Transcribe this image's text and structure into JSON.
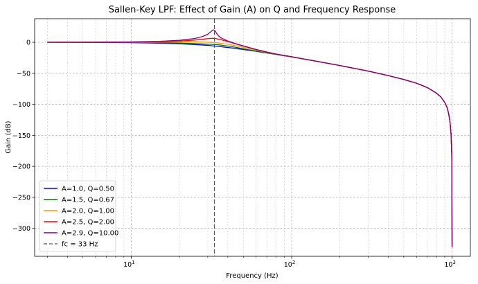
{
  "chart_data": {
    "type": "line",
    "title": "Sallen-Key LPF: Effect of Gain (A) on Q and Frequency Response",
    "xlabel": "Frequency (Hz)",
    "ylabel": "Gain (dB)",
    "xscale": "log",
    "xlim": [
      2.5,
      1300
    ],
    "ylim": [
      -345,
      38
    ],
    "x_ticks": [
      {
        "value": 10,
        "base": "10",
        "exp": "1"
      },
      {
        "value": 100,
        "base": "10",
        "exp": "2"
      },
      {
        "value": 1000,
        "base": "10",
        "exp": "3"
      }
    ],
    "y_ticks": [
      {
        "value": 0,
        "label": "0"
      },
      {
        "value": -50,
        "label": "−50"
      },
      {
        "value": -100,
        "label": "−100"
      },
      {
        "value": -150,
        "label": "−150"
      },
      {
        "value": -200,
        "label": "−200"
      },
      {
        "value": -250,
        "label": "−250"
      },
      {
        "value": -300,
        "label": "−300"
      }
    ],
    "grid": true,
    "legend_position": "lower-left",
    "fc_line": {
      "value": 33,
      "label": "fc = 33 Hz",
      "color": "#555555"
    },
    "series": [
      {
        "name": "A=1.0, Q=0.50",
        "color": "#0000ff",
        "x": [
          3,
          6,
          10,
          15,
          20,
          25,
          28,
          30,
          32,
          33,
          34,
          36,
          40,
          45,
          50,
          60,
          70,
          80,
          100,
          150,
          200,
          300,
          400,
          500,
          600,
          700,
          800,
          850,
          900,
          930,
          950,
          970,
          985,
          995,
          1000
        ],
        "y": [
          0,
          -0.3,
          -0.7,
          -1.4,
          -2.4,
          -3.7,
          -4.5,
          -5,
          -5.7,
          -6,
          -6.4,
          -7.1,
          -8.4,
          -10,
          -11.6,
          -14.6,
          -17.3,
          -19.7,
          -23.7,
          -31.6,
          -37.5,
          -46.5,
          -53.7,
          -60,
          -66,
          -73,
          -82,
          -88,
          -97,
          -105,
          -114,
          -128,
          -148,
          -180,
          -330
        ]
      },
      {
        "name": "A=1.5, Q=0.67",
        "color": "#007700",
        "x": [
          3,
          6,
          10,
          15,
          20,
          25,
          28,
          30,
          32,
          33,
          34,
          36,
          40,
          45,
          50,
          60,
          70,
          80,
          100,
          150,
          200,
          300,
          400,
          500,
          600,
          700,
          800,
          850,
          900,
          930,
          950,
          970,
          985,
          995,
          1000
        ],
        "y": [
          0,
          -0.1,
          -0.3,
          -0.6,
          -1.2,
          -2.1,
          -2.7,
          -3.1,
          -3.4,
          -3.5,
          -3.7,
          -4.5,
          -6.1,
          -8.2,
          -10.4,
          -14.2,
          -17.2,
          -19.7,
          -23.7,
          -31.6,
          -37.5,
          -46.5,
          -53.7,
          -60,
          -66,
          -73,
          -82,
          -88,
          -97,
          -105,
          -114,
          -128,
          -148,
          -180,
          -330
        ]
      },
      {
        "name": "A=2.0, Q=1.00",
        "color": "#ff9900",
        "x": [
          3,
          6,
          10,
          15,
          20,
          25,
          28,
          30,
          32,
          33,
          34,
          36,
          40,
          45,
          50,
          60,
          70,
          80,
          100,
          150,
          200,
          300,
          400,
          500,
          600,
          700,
          800,
          850,
          900,
          930,
          950,
          970,
          985,
          995,
          1000
        ],
        "y": [
          0,
          0.1,
          0.2,
          0.4,
          0.6,
          0.6,
          0.3,
          0,
          -0.3,
          -0.5,
          -0.8,
          -1.6,
          -3.2,
          -5.5,
          -8,
          -12.6,
          -16.2,
          -19.2,
          -23.5,
          -31.6,
          -37.5,
          -46.5,
          -53.7,
          -60,
          -66,
          -73,
          -82,
          -88,
          -97,
          -105,
          -114,
          -128,
          -148,
          -180,
          -330
        ]
      },
      {
        "name": "A=2.5, Q=2.00",
        "color": "#ff0000",
        "x": [
          3,
          6,
          10,
          15,
          20,
          25,
          28,
          30,
          32,
          33,
          34,
          36,
          40,
          45,
          50,
          60,
          70,
          80,
          100,
          150,
          200,
          300,
          400,
          500,
          600,
          700,
          800,
          850,
          900,
          930,
          950,
          970,
          985,
          995,
          1000
        ],
        "y": [
          0,
          0.1,
          0.4,
          1,
          2,
          3.6,
          5,
          5.9,
          6.4,
          6.3,
          5.8,
          4.3,
          1.2,
          -2.7,
          -6.1,
          -11.7,
          -15.8,
          -19,
          -23.3,
          -31.5,
          -37.5,
          -46.5,
          -53.7,
          -60,
          -66,
          -73,
          -82,
          -88,
          -97,
          -105,
          -114,
          -128,
          -148,
          -180,
          -330
        ]
      },
      {
        "name": "A=2.9, Q=10.00",
        "color": "#800080",
        "x": [
          3,
          6,
          10,
          15,
          20,
          25,
          28,
          30,
          31,
          32,
          32.5,
          33,
          33.5,
          34,
          35,
          36,
          40,
          45,
          50,
          60,
          70,
          80,
          100,
          150,
          200,
          300,
          400,
          500,
          600,
          700,
          800,
          850,
          900,
          930,
          950,
          970,
          985,
          995,
          1000
        ],
        "y": [
          0,
          0.2,
          0.6,
          1.6,
          3.2,
          6.2,
          9.5,
          13,
          16,
          19,
          20,
          19.5,
          17.5,
          14.5,
          10.5,
          7.5,
          2,
          -2.3,
          -5.8,
          -11.5,
          -15.7,
          -18.9,
          -23.3,
          -31.5,
          -37.5,
          -46.5,
          -53.7,
          -60,
          -66,
          -73,
          -82,
          -88,
          -97,
          -105,
          -114,
          -128,
          -148,
          -180,
          -330
        ]
      }
    ]
  }
}
